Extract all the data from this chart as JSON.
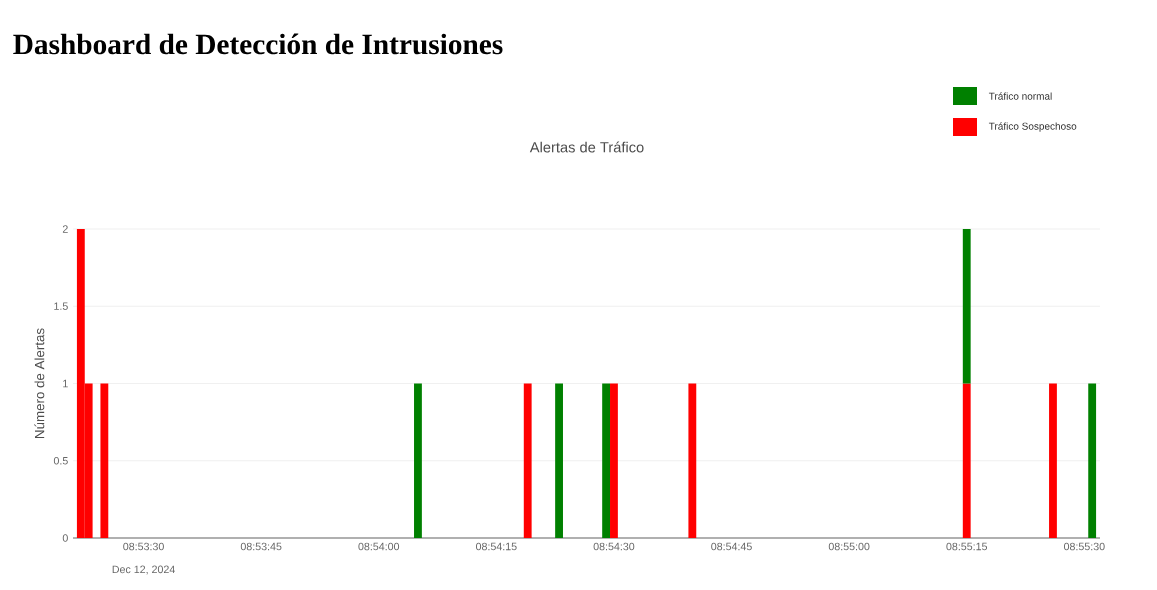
{
  "chart_data": {
    "type": "bar",
    "title": "Dashboard de Detección de Intrusiones",
    "subtitle": "Alertas de Tráfico",
    "ylabel": "Número de Alertas",
    "annotations": [
      "Dec 12, 2024"
    ],
    "stacked": true,
    "x": [
      "2024-12-12T08:53:22",
      "2024-12-12T08:53:23",
      "2024-12-12T08:53:25",
      "2024-12-12T08:54:05",
      "2024-12-12T08:54:19",
      "2024-12-12T08:54:23",
      "2024-12-12T08:54:29",
      "2024-12-12T08:54:30",
      "2024-12-12T08:54:40",
      "2024-12-12T08:55:15",
      "2024-12-12T08:55:26",
      "2024-12-12T08:55:31"
    ],
    "series": [
      {
        "name": "Tráfico Sospechoso",
        "color": "#ff0000",
        "values": [
          2,
          1,
          1,
          null,
          1,
          null,
          null,
          1,
          1,
          1,
          1,
          null
        ]
      },
      {
        "name": "Tráfico normal",
        "color": "#008000",
        "values": [
          null,
          null,
          null,
          1,
          null,
          1,
          1,
          null,
          null,
          1,
          null,
          1
        ]
      }
    ],
    "xlim": [
      "2024-12-12T08:53:21",
      "2024-12-12T08:55:32"
    ],
    "xticks": [
      {
        "value": "2024-12-12T08:53:30",
        "label": "08:53:30"
      },
      {
        "value": "2024-12-12T08:53:45",
        "label": "08:53:45"
      },
      {
        "value": "2024-12-12T08:54:00",
        "label": "08:54:00"
      },
      {
        "value": "2024-12-12T08:54:15",
        "label": "08:54:15"
      },
      {
        "value": "2024-12-12T08:54:30",
        "label": "08:54:30"
      },
      {
        "value": "2024-12-12T08:54:45",
        "label": "08:54:45"
      },
      {
        "value": "2024-12-12T08:55:00",
        "label": "08:55:00"
      },
      {
        "value": "2024-12-12T08:55:15",
        "label": "08:55:15"
      },
      {
        "value": "2024-12-12T08:55:30",
        "label": "08:55:30"
      }
    ],
    "ylim": [
      0,
      2
    ],
    "yticks": [
      0,
      0.5,
      1,
      1.5,
      2
    ],
    "grid": "y",
    "legend": "top right"
  }
}
